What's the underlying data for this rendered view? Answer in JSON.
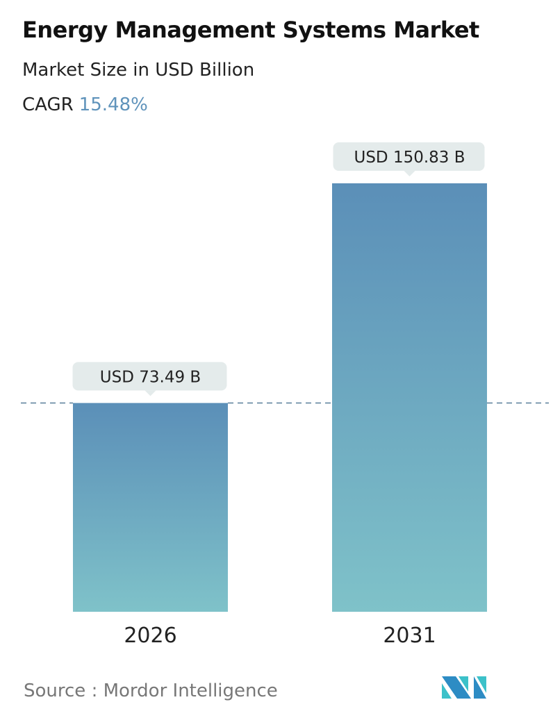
{
  "header": {
    "title": "Energy Management Systems Market",
    "subtitle": "Market Size in USD Billion",
    "cagr_label": "CAGR",
    "cagr_value": "15.48%"
  },
  "colors": {
    "bar_top": "#5b8fb8",
    "bar_bottom": "#7fc2c9",
    "label_bg": "#e4ebeb",
    "accent": "#5f93bb",
    "dash": "#5a7f9a"
  },
  "chart_data": {
    "type": "bar",
    "title": "Energy Management Systems Market",
    "ylabel": "Market Size in USD Billion",
    "categories": [
      "2026",
      "2031"
    ],
    "values": [
      73.49,
      150.83
    ],
    "data_labels": [
      "USD 73.49 B",
      "USD 150.83 B"
    ],
    "ylim": [
      0,
      150.83
    ],
    "grid": false,
    "reference_line_value": 73.49
  },
  "footer": {
    "source": "Source :  Mordor Intelligence",
    "logo": "Mordor Intelligence"
  }
}
